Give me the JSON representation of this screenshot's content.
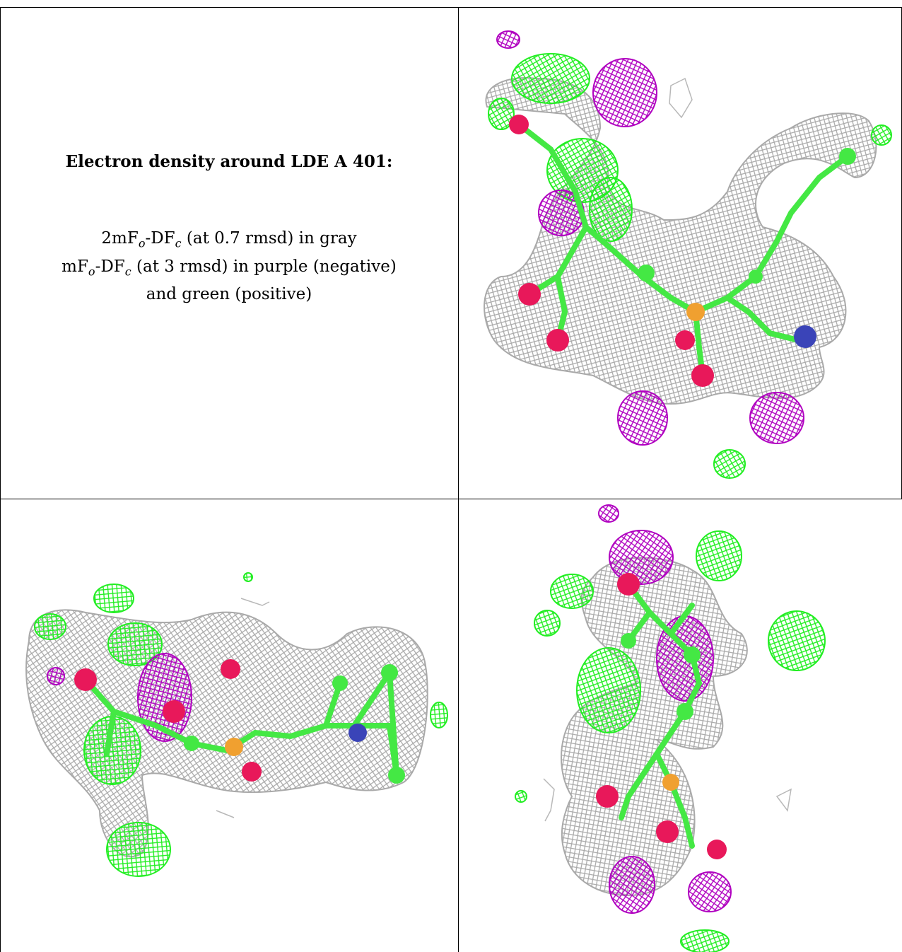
{
  "caption": {
    "title": "Electron density around LDE A 401:",
    "line1_pre": "2mF",
    "line1_sub1": "o",
    "line1_mid": "-DF",
    "line1_sub2": "c",
    "line1_post": " (at 0.7 rmsd) in gray",
    "line2_pre": "mF",
    "line2_sub1": "o",
    "line2_mid": "-DF",
    "line2_sub2": "c",
    "line2_post": " (at 3 rmsd) in purple (negative)",
    "line3": "and green (positive)"
  },
  "colors": {
    "density_2fofc": "#a9a9a9",
    "density_positive": "#22ee22",
    "density_negative": "#b000c0",
    "atom_carbon": "#44e844",
    "atom_oxygen": "#e8185a",
    "atom_phosphorus": "#f0a030",
    "atom_nitrogen": "#3a44b8"
  },
  "panels": [
    {
      "id": "view-1"
    },
    {
      "id": "view-2"
    },
    {
      "id": "view-3"
    }
  ]
}
